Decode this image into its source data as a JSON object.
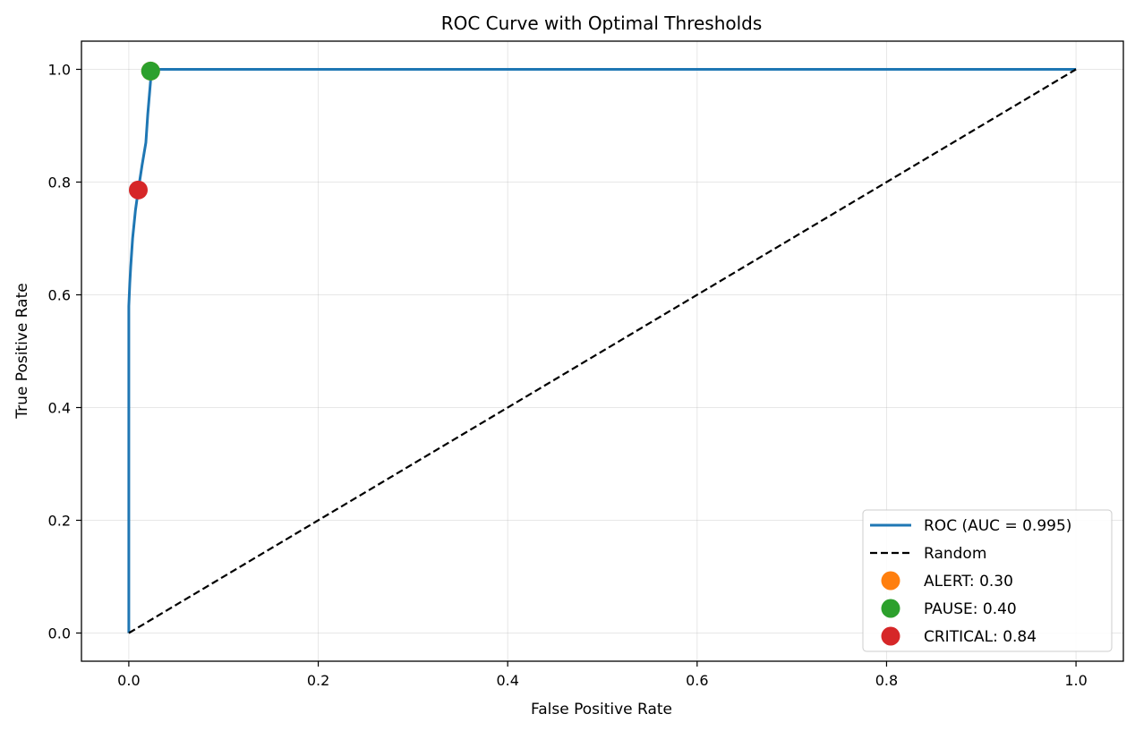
{
  "chart_data": {
    "type": "line",
    "title": "ROC Curve with Optimal Thresholds",
    "xlabel": "False Positive Rate",
    "ylabel": "True Positive Rate",
    "xlim": [
      -0.05,
      1.05
    ],
    "ylim": [
      -0.05,
      1.05
    ],
    "xticks": [
      0.0,
      0.2,
      0.4,
      0.6,
      0.8,
      1.0
    ],
    "yticks": [
      0.0,
      0.2,
      0.4,
      0.6,
      0.8,
      1.0
    ],
    "xtick_labels": [
      "0.0",
      "0.2",
      "0.4",
      "0.6",
      "0.8",
      "1.0"
    ],
    "ytick_labels": [
      "0.0",
      "0.2",
      "0.4",
      "0.6",
      "0.8",
      "1.0"
    ],
    "grid": true,
    "legend_position": "lower-right",
    "series": [
      {
        "name": "ROC (AUC = 0.995)",
        "style": "solid",
        "color": "#1f77b4",
        "x": [
          0.0,
          0.0,
          0.0,
          0.001,
          0.002,
          0.004,
          0.007,
          0.01,
          0.014,
          0.018,
          0.02,
          0.022,
          0.024,
          1.0
        ],
        "y": [
          0.0,
          0.52,
          0.58,
          0.62,
          0.65,
          0.7,
          0.75,
          0.786,
          0.83,
          0.87,
          0.92,
          0.96,
          1.0,
          1.0
        ]
      },
      {
        "name": "Random",
        "style": "dashed",
        "color": "#000000",
        "x": [
          0.0,
          1.0
        ],
        "y": [
          0.0,
          1.0
        ]
      }
    ],
    "markers": [
      {
        "label": "ALERT: 0.30",
        "color": "#ff7f0e",
        "x": 0.023,
        "y": 0.997
      },
      {
        "label": "PAUSE: 0.40",
        "color": "#2ca02c",
        "x": 0.023,
        "y": 0.997
      },
      {
        "label": "CRITICAL: 0.84",
        "color": "#d62728",
        "x": 0.01,
        "y": 0.786
      }
    ]
  }
}
